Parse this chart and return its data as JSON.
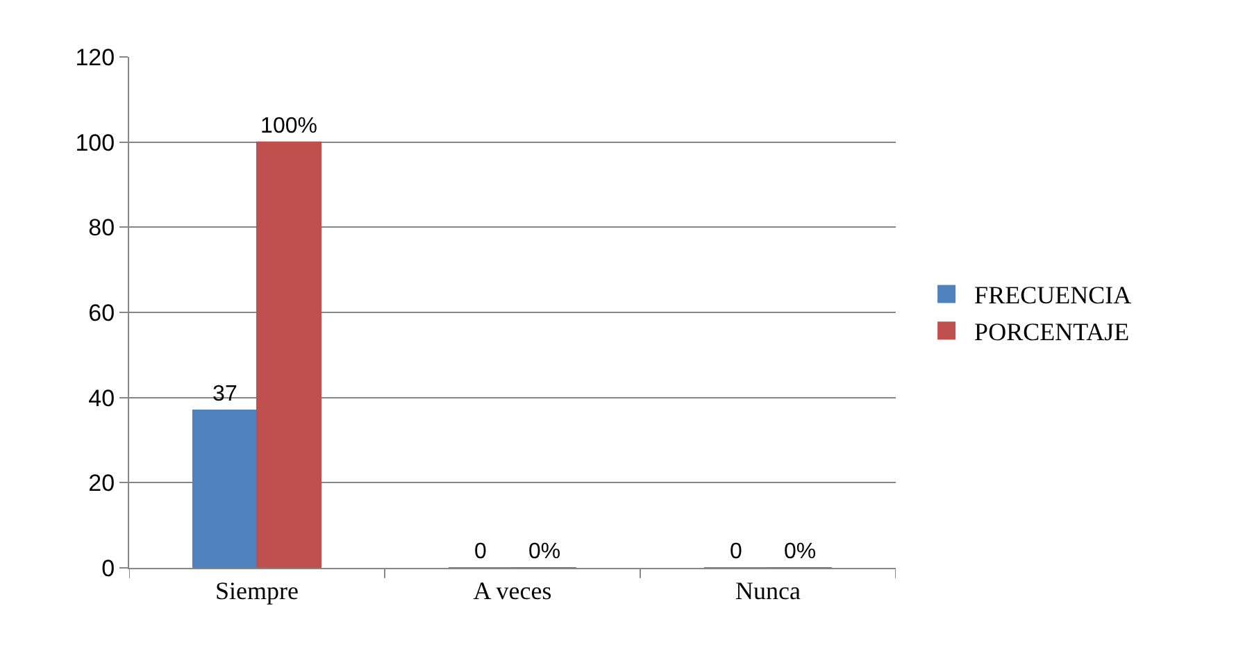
{
  "chart_data": {
    "type": "bar",
    "categories": [
      "Siempre",
      "A veces",
      "Nunca"
    ],
    "series": [
      {
        "name": "FRECUENCIA",
        "color": "#4f81bd",
        "values": [
          37,
          0,
          0
        ],
        "value_labels": [
          "37",
          "0",
          "0"
        ]
      },
      {
        "name": "PORCENTAJE",
        "color": "#c0504d",
        "values": [
          100,
          0,
          0
        ],
        "value_labels": [
          "100%",
          "0%",
          "0%"
        ]
      }
    ],
    "ylim": [
      0,
      120
    ],
    "yticks": [
      0,
      20,
      40,
      60,
      80,
      100,
      120
    ],
    "grid": "y",
    "legend": "right"
  }
}
